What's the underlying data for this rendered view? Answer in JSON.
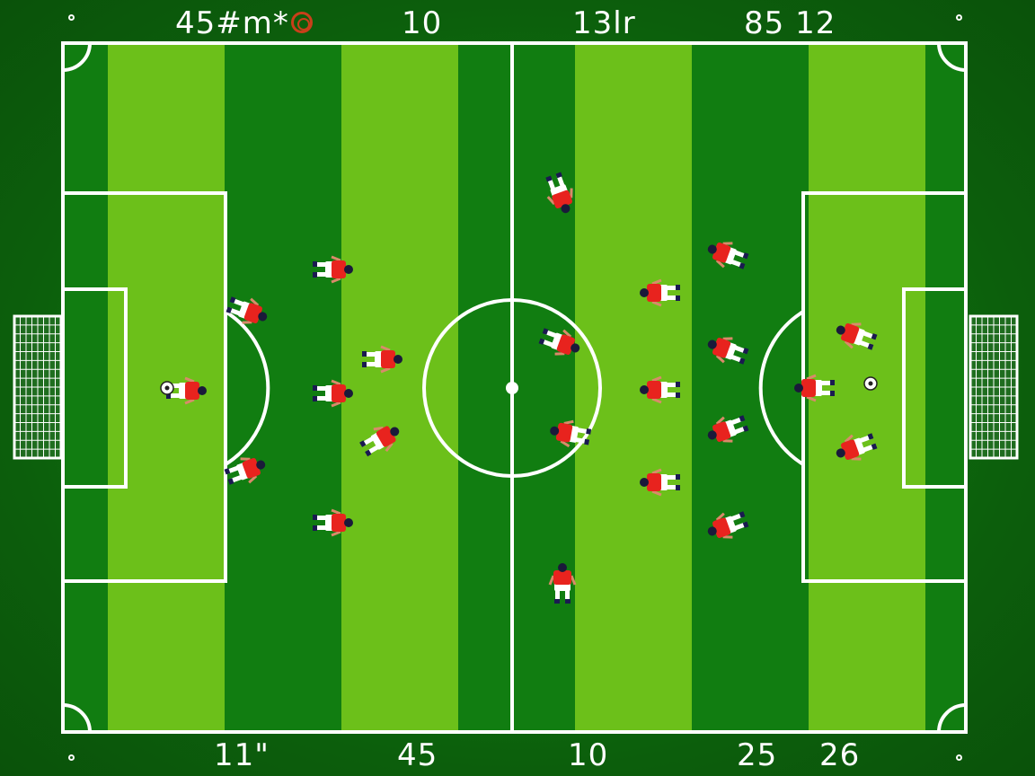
{
  "hud_top": {
    "left": "45#m*",
    "left_icon": "target-icon",
    "center_left": "10",
    "center_right": "13lr",
    "right": "85 12"
  },
  "hud_bottom": {
    "left": "11\"",
    "center_left": "45",
    "center": "10",
    "right_a": "25",
    "right_b": "26"
  },
  "colors": {
    "stripe_light": "#6cc01a",
    "stripe_dark": "#117d11",
    "background": "#0c5e0c",
    "line": "#ffffff",
    "team_shirt": "#e8231e",
    "team_shorts": "#ffffff",
    "target_icon": "#c8401a"
  }
}
